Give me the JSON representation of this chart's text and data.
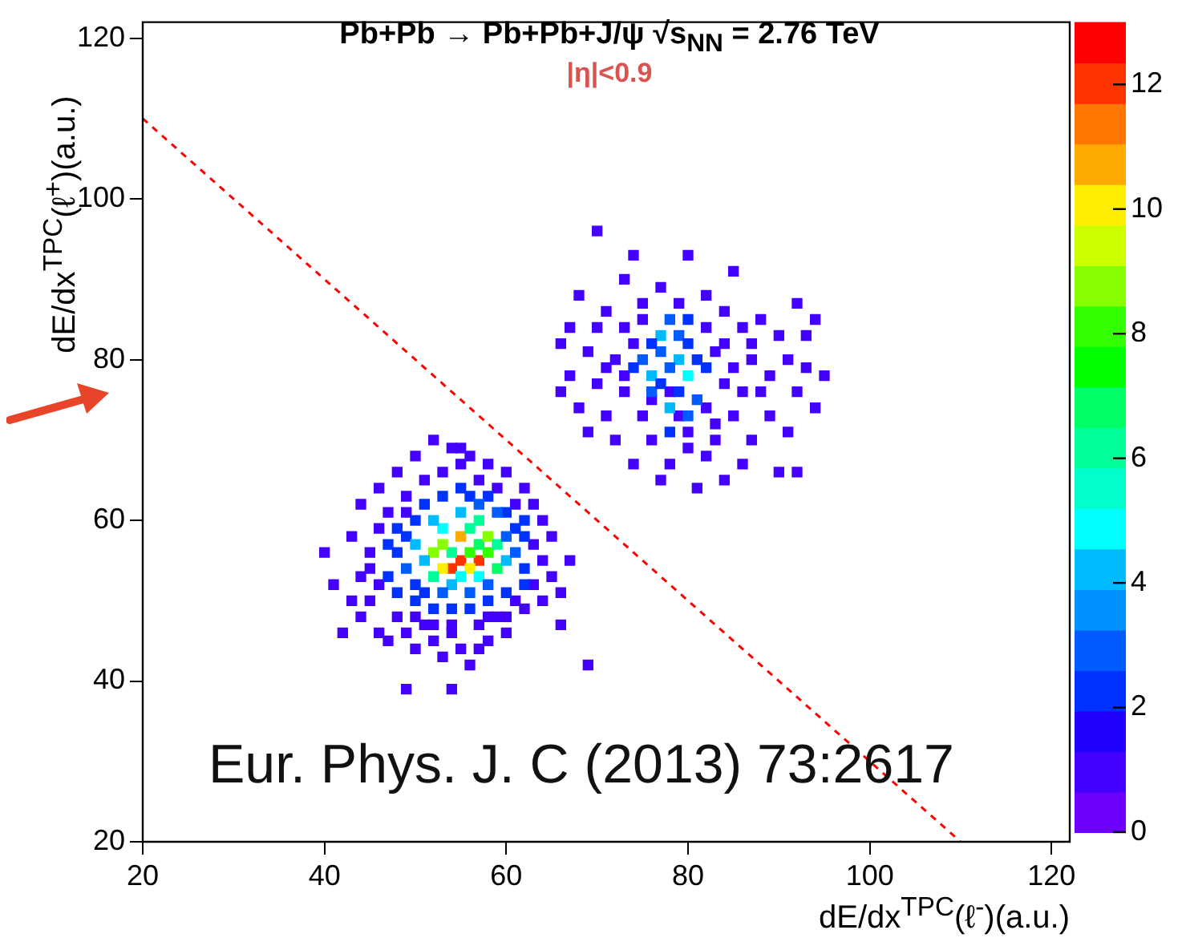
{
  "chart_data": {
    "type": "scatter",
    "title": "Pb+Pb → Pb+Pb+J/ψ √s$_{NN}$ = 2.76 TeV",
    "xlabel": "dE/dx$^{TPC}$(ℓ$^{-}$)(a.u.)",
    "ylabel": "dE/dx$^{TPC}$(ℓ$^{+}$)(a.u.)",
    "annotations": [
      "|η|<0.9",
      "Eur. Phys. J. C (2013) 73:2617"
    ],
    "xlim": [
      20,
      122
    ],
    "ylim": [
      20,
      122
    ],
    "xticks": [
      20,
      40,
      60,
      80,
      100,
      120
    ],
    "yticks": [
      20,
      40,
      60,
      80,
      100,
      120
    ],
    "clim": [
      0,
      13
    ],
    "cticks": [
      0,
      2,
      4,
      6,
      8,
      10,
      12
    ],
    "marker": "square",
    "grid": false,
    "legend": false,
    "series": [
      {
        "x": [
          55,
          57,
          54,
          53,
          56,
          55,
          56,
          52,
          58,
          57,
          54,
          53,
          58,
          55,
          57,
          52,
          59,
          59,
          53,
          56,
          57,
          55,
          51,
          50,
          54,
          58,
          60,
          60,
          56,
          53,
          51,
          49,
          48,
          52,
          57,
          59,
          61,
          62,
          50,
          47
        ],
        "values": [
          55,
          55,
          54,
          54,
          54,
          58,
          56,
          56,
          56,
          57,
          56,
          57,
          58,
          53,
          53,
          53,
          54,
          57,
          59,
          59,
          60,
          61,
          55,
          57,
          52,
          52,
          55,
          58,
          51,
          51,
          51,
          54,
          56,
          60,
          62,
          61,
          56,
          54,
          52,
          53
        ],
        "colors": [
          "#ff3300",
          "#ff3300",
          "#ff3300",
          "#ffee00",
          "#ffee00",
          "#ffaa00",
          "#33ff00",
          "#88ff00",
          "#33ff00",
          "#00ff66",
          "#00ff99",
          "#88ff00",
          "#88ff00",
          "#00ffff",
          "#00ffff",
          "#00ff99",
          "#00ff66",
          "#00ff99",
          "#00ffff",
          "#00ff99",
          "#00ff99",
          "#00baff",
          "#00baff",
          "#00baff",
          "#00baff",
          "#005cff",
          "#00baff",
          "#005cff",
          "#005cff",
          "#005cff",
          "#0032ff",
          "#005cff",
          "#0032ff",
          "#00baff",
          "#005cff",
          "#005cff",
          "#005cff",
          "#0032ff",
          "#0032ff",
          "#0032ff"
        ],
        "cvalues": [
          12,
          12,
          12,
          10,
          10,
          11,
          8,
          9,
          8,
          7,
          6,
          9,
          9,
          5,
          5,
          6,
          7,
          6,
          5,
          6,
          6,
          4,
          4,
          4,
          4,
          3,
          4,
          3,
          3,
          3,
          2,
          3,
          2,
          4,
          3,
          3,
          3,
          2,
          2,
          2
        ]
      },
      {
        "x": [
          44,
          45,
          46,
          47,
          48,
          49,
          50,
          51,
          52,
          53,
          54,
          55,
          56,
          57,
          58,
          59,
          60,
          61,
          62,
          63,
          64,
          65,
          66,
          67,
          65,
          64,
          63,
          62,
          60,
          58,
          56,
          54,
          52,
          50,
          48,
          46,
          44,
          43,
          40,
          41,
          43,
          45,
          46,
          47,
          49,
          51,
          53,
          55,
          57,
          59,
          61,
          62,
          63,
          64,
          62,
          60,
          58,
          56,
          54,
          52,
          50,
          48,
          47,
          48,
          49,
          50,
          51,
          53,
          55,
          56,
          58,
          60,
          61,
          62,
          46,
          45,
          44,
          49,
          50,
          52,
          54,
          58,
          60,
          57,
          55,
          49,
          54,
          69,
          42,
          66
        ],
        "colors": [
          "#4400ff",
          "#4400ff",
          "#4400ff",
          "#4400ff",
          "#4400ff",
          "#4400ff",
          "#4400ff",
          "#4400ff",
          "#4400ff",
          "#4400ff",
          "#4400ff",
          "#4400ff",
          "#4400ff",
          "#4400ff",
          "#4400ff",
          "#4400ff",
          "#4400ff",
          "#4400ff",
          "#4400ff",
          "#4400ff",
          "#4400ff",
          "#4400ff",
          "#4400ff",
          "#4400ff",
          "#4400ff",
          "#4400ff",
          "#4400ff",
          "#4400ff",
          "#4400ff",
          "#4400ff",
          "#4400ff",
          "#4400ff",
          "#4400ff",
          "#4400ff",
          "#4400ff",
          "#4400ff",
          "#4400ff",
          "#4400ff",
          "#4400ff",
          "#4400ff",
          "#4400ff",
          "#4400ff",
          "#4400ff",
          "#4400ff",
          "#4400ff",
          "#4400ff",
          "#4400ff",
          "#4400ff",
          "#4400ff",
          "#4400ff",
          "#4400ff",
          "#0032ff",
          "#4400ff",
          "#4400ff",
          "#0032ff",
          "#0032ff",
          "#0032ff",
          "#0032ff",
          "#0032ff",
          "#0032ff",
          "#0032ff",
          "#0032ff",
          "#0032ff",
          "#0032ff",
          "#4400ff",
          "#0032ff",
          "#0032ff",
          "#0032ff",
          "#0032ff",
          "#0032ff",
          "#0032ff",
          "#0032ff",
          "#0032ff",
          "#0032ff",
          "#4400ff",
          "#4400ff",
          "#4400ff",
          "#0032ff",
          "#4400ff",
          "#4400ff",
          "#4400ff",
          "#4400ff",
          "#4400ff",
          "#4400ff",
          "#4400ff",
          "#4400ff",
          "#4400ff",
          "#4400ff",
          "#4400ff",
          "#4400ff"
        ],
        "values": [
          48,
          50,
          46,
          45,
          48,
          46,
          44,
          47,
          45,
          43,
          46,
          44,
          42,
          47,
          45,
          48,
          46,
          50,
          49,
          52,
          50,
          53,
          51,
          55,
          58,
          60,
          62,
          64,
          66,
          67,
          68,
          69,
          70,
          68,
          66,
          64,
          62,
          58,
          56,
          52,
          50,
          56,
          59,
          61,
          63,
          65,
          66,
          67,
          65,
          64,
          62,
          60,
          57,
          55,
          52,
          51,
          50,
          49,
          49,
          49,
          50,
          51,
          57,
          59,
          61,
          60,
          62,
          63,
          64,
          63,
          63,
          61,
          59,
          58,
          52,
          54,
          53,
          58,
          48,
          47,
          47,
          48,
          48,
          44,
          69,
          39,
          39,
          42,
          46,
          47
        ],
        "cvalues": [
          1,
          1,
          1,
          1,
          1,
          1,
          1,
          1,
          1,
          1,
          1,
          1,
          1,
          1,
          1,
          1,
          1,
          1,
          1,
          1,
          1,
          1,
          1,
          1,
          1,
          1,
          1,
          1,
          1,
          1,
          1,
          1,
          1,
          1,
          1,
          1,
          1,
          1,
          1,
          1,
          1,
          1,
          1,
          1,
          1,
          1,
          1,
          1,
          1,
          1,
          1,
          2,
          1,
          1,
          2,
          2,
          2,
          2,
          2,
          2,
          2,
          2,
          2,
          2,
          1,
          2,
          2,
          2,
          2,
          2,
          2,
          2,
          2,
          2,
          1,
          1,
          1,
          2,
          1,
          1,
          1,
          1,
          1,
          1,
          1,
          1,
          1,
          1,
          1,
          1
        ]
      },
      {
        "x": [
          77,
          78,
          79,
          76,
          80,
          78,
          77,
          79,
          75,
          76,
          81,
          80,
          78,
          77,
          79,
          81,
          76,
          80,
          82,
          78,
          80,
          74
        ],
        "values": [
          83,
          85,
          80,
          78,
          78,
          74,
          81,
          83,
          80,
          76,
          80,
          82,
          79,
          77,
          76,
          75,
          82,
          85,
          79,
          71,
          73,
          79
        ],
        "colors": [
          "#00baff",
          "#005cff",
          "#00baff",
          "#00baff",
          "#00ffff",
          "#00baff",
          "#005cff",
          "#005cff",
          "#005cff",
          "#005cff",
          "#0032ff",
          "#0032ff",
          "#005cff",
          "#0032ff",
          "#0032ff",
          "#005cff",
          "#0032ff",
          "#0032ff",
          "#0032ff",
          "#0032ff",
          "#005cff",
          "#0032ff"
        ],
        "cvalues": [
          4,
          3,
          4,
          4,
          5,
          4,
          3,
          3,
          3,
          3,
          2,
          2,
          3,
          2,
          2,
          3,
          2,
          2,
          2,
          2,
          3,
          2
        ]
      },
      {
        "x": [
          70,
          74,
          80,
          73,
          85,
          68,
          77,
          82,
          71,
          75,
          79,
          84,
          88,
          92,
          94,
          67,
          70,
          73,
          86,
          90,
          93,
          66,
          69,
          72,
          83,
          87,
          91,
          95,
          67,
          70,
          73,
          84,
          88,
          92,
          68,
          71,
          75,
          85,
          89,
          94,
          72,
          76,
          80,
          83,
          87,
          91,
          74,
          78,
          82,
          86,
          90,
          92,
          81,
          77,
          84,
          69,
          93,
          66,
          74,
          82,
          85,
          86,
          76,
          79,
          82,
          73,
          83,
          80,
          75,
          78,
          84,
          87,
          71,
          89
        ],
        "color": "#4400ff",
        "values": [
          96,
          93,
          93,
          90,
          91,
          88,
          89,
          88,
          86,
          87,
          87,
          86,
          85,
          87,
          85,
          84,
          84,
          84,
          84,
          83,
          83,
          82,
          81,
          80,
          81,
          80,
          80,
          78,
          78,
          77,
          76,
          77,
          76,
          76,
          74,
          73,
          73,
          73,
          73,
          74,
          70,
          70,
          71,
          70,
          70,
          71,
          67,
          67,
          68,
          67,
          66,
          66,
          64,
          65,
          65,
          71,
          79,
          76,
          82,
          84,
          79,
          76,
          75,
          73,
          74,
          78,
          72,
          69,
          85,
          76,
          82,
          82,
          79,
          78
        ],
        "cvalues": [
          1,
          1,
          1,
          1,
          1,
          1,
          1,
          1,
          1,
          1,
          1,
          1,
          1,
          1,
          1,
          1,
          1,
          1,
          1,
          1,
          1,
          1,
          1,
          1,
          1,
          1,
          1,
          1,
          1,
          1,
          1,
          1,
          1,
          1,
          1,
          1,
          1,
          1,
          1,
          1,
          1,
          1,
          1,
          1,
          1,
          1,
          1,
          1,
          1,
          1,
          1,
          1,
          1,
          1,
          1,
          1,
          1,
          1,
          1,
          1,
          1,
          1,
          1,
          1,
          1,
          1,
          1,
          1,
          1,
          1,
          1,
          1,
          1,
          1
        ]
      },
      {
        "type": "line",
        "x": [
          20,
          110
        ],
        "values": [
          110,
          20
        ],
        "color": "#ff0000",
        "line_style": "dashed",
        "marker": "none"
      }
    ]
  }
}
